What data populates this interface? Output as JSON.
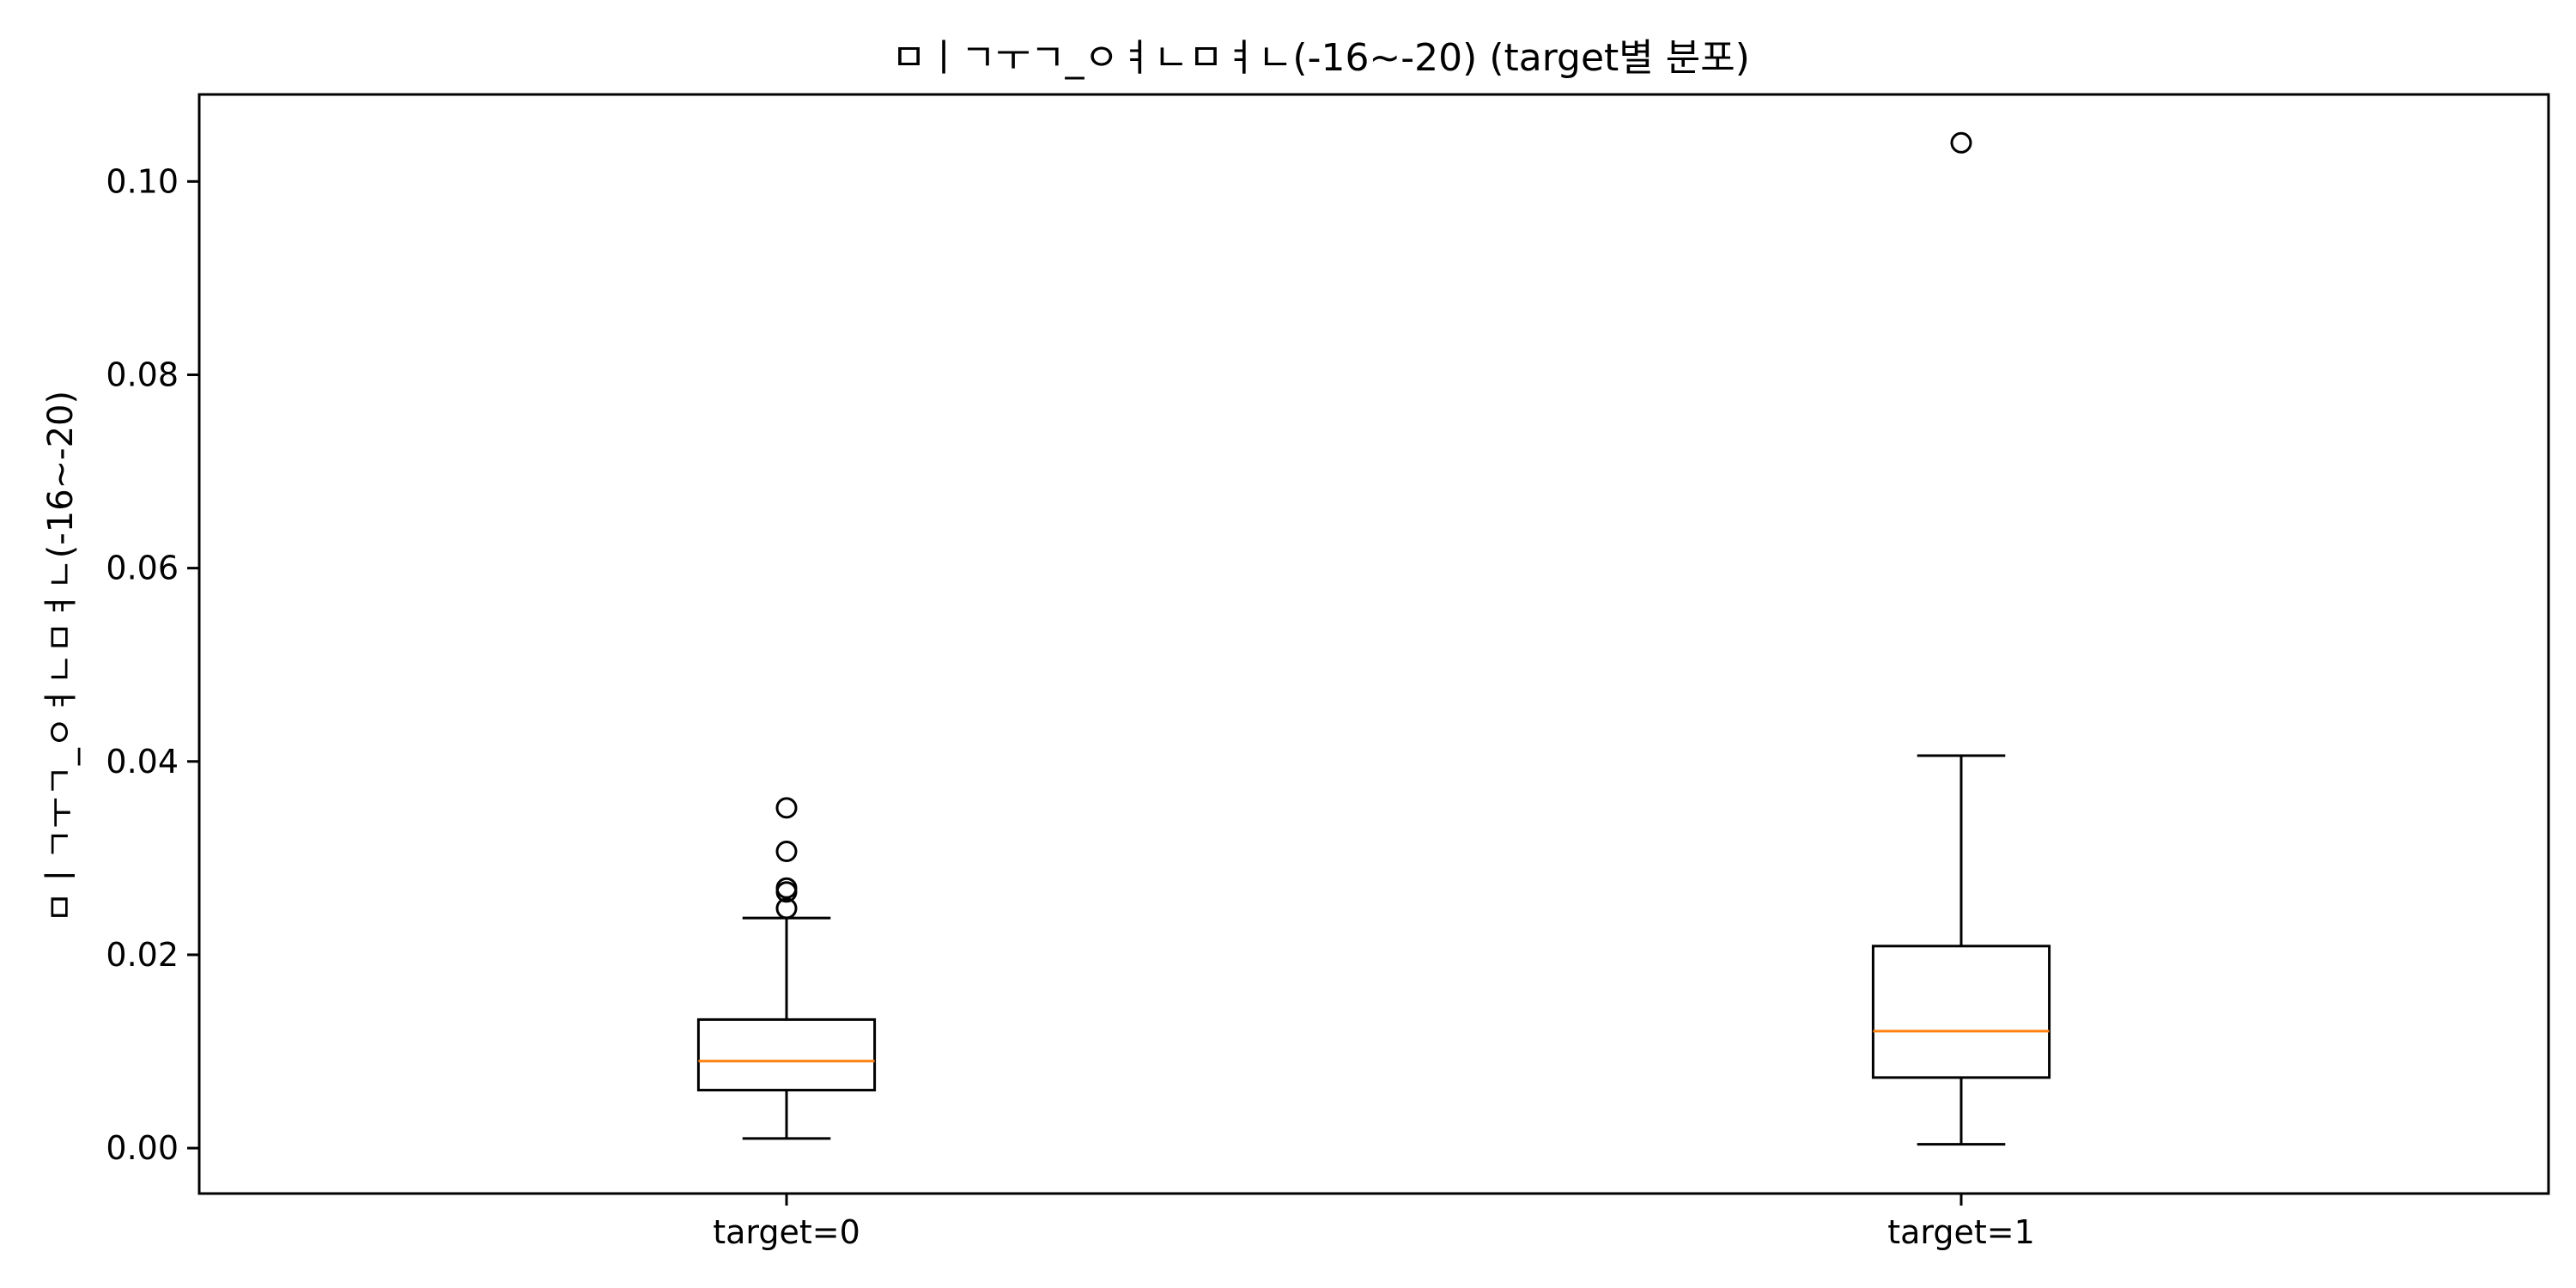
{
  "chart_data": {
    "type": "box",
    "title": "ㅁㅣㄱㅜㄱ_ㅇㅕㄴㅁㅕㄴ(-16~-20) (target별 분포)",
    "ylabel": "ㅁㅣㄱㅜㄱ_ㅇㅕㄴㅁㅕㄴ(-16~-20)",
    "xlabel": "",
    "ylim": [
      -0.0047,
      0.109
    ],
    "yticks": [
      0.0,
      0.02,
      0.04,
      0.06,
      0.08,
      0.1
    ],
    "ytick_labels": [
      "0.00",
      "0.02",
      "0.04",
      "0.06",
      "0.08",
      "0.10"
    ],
    "categories": [
      "target=0",
      "target=1"
    ],
    "boxes": [
      {
        "name": "target=0",
        "whisker_low": 0.001,
        "q1": 0.006,
        "median": 0.009,
        "q3": 0.0133,
        "whisker_high": 0.0238,
        "outliers": [
          0.0248,
          0.0265,
          0.0269,
          0.0307,
          0.0352
        ]
      },
      {
        "name": "target=1",
        "whisker_low": 0.0004,
        "q1": 0.0073,
        "median": 0.0121,
        "q3": 0.0209,
        "whisker_high": 0.0406,
        "outliers": [
          0.104
        ]
      }
    ],
    "colors": {
      "box": "#000000",
      "median": "#ff7f0e",
      "outlier": "#000000"
    },
    "grid": false,
    "legend": "none"
  }
}
